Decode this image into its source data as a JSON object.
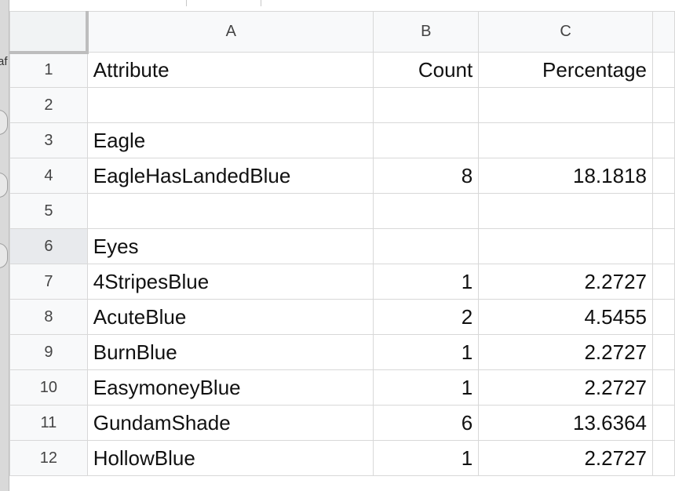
{
  "left_fragment": "af",
  "columns": [
    "A",
    "B",
    "C"
  ],
  "rows": [
    {
      "n": "1",
      "a": "Attribute",
      "b": "Count",
      "c": "Percentage"
    },
    {
      "n": "2",
      "a": "",
      "b": "",
      "c": ""
    },
    {
      "n": "3",
      "a": "Eagle",
      "b": "",
      "c": ""
    },
    {
      "n": "4",
      "a": "EagleHasLandedBlue",
      "b": "8",
      "c": "18.1818"
    },
    {
      "n": "5",
      "a": "",
      "b": "",
      "c": ""
    },
    {
      "n": "6",
      "a": "Eyes",
      "b": "",
      "c": ""
    },
    {
      "n": "7",
      "a": "4StripesBlue",
      "b": "1",
      "c": "2.2727"
    },
    {
      "n": "8",
      "a": "AcuteBlue",
      "b": "2",
      "c": "4.5455"
    },
    {
      "n": "9",
      "a": "BurnBlue",
      "b": "1",
      "c": "2.2727"
    },
    {
      "n": "10",
      "a": "EasymoneyBlue",
      "b": "1",
      "c": "2.2727"
    },
    {
      "n": "11",
      "a": "GundamShade",
      "b": "6",
      "c": "13.6364"
    },
    {
      "n": "12",
      "a": "HollowBlue",
      "b": "1",
      "c": "2.2727"
    }
  ]
}
